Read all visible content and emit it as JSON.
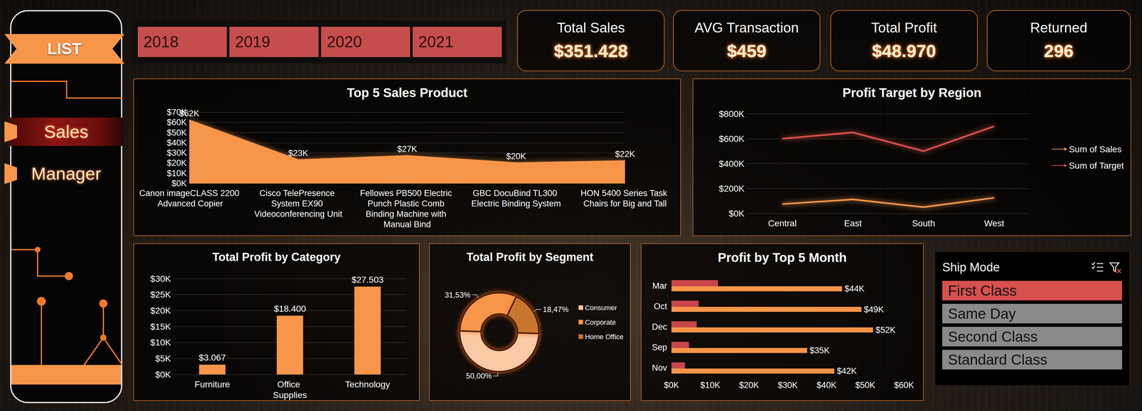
{
  "sidebar": {
    "banner": "LIST",
    "menu": [
      "Sales",
      "Manager"
    ]
  },
  "years": [
    "2018",
    "2019",
    "2020",
    "2021"
  ],
  "kpis": [
    {
      "label": "Total Sales",
      "value": "$351.428"
    },
    {
      "label": "AVG Transaction",
      "value": "$459"
    },
    {
      "label": "Total Profit",
      "value": "$48.970"
    },
    {
      "label": "Returned",
      "value": "296"
    }
  ],
  "ship_mode": {
    "title": "Ship Mode",
    "options": [
      "First Class",
      "Same Day",
      "Second Class",
      "Standard Class"
    ],
    "selected": "First Class"
  },
  "chart_data": [
    {
      "type": "area",
      "title": "Top 5 Sales Product",
      "categories": [
        "Canon imageCLASS 2200 Advanced Copier",
        "Cisco TelePresence System EX90 Videoconferencing Unit",
        "Fellowes PB500 Electric Punch Plastic Comb Binding Machine with Manual Bind",
        "GBC DocuBind TL300 Electric Binding System",
        "HON 5400 Series Task Chairs for Big and Tall"
      ],
      "values": [
        62000,
        23000,
        27000,
        20000,
        22000
      ],
      "value_labels": [
        "$62K",
        "$23K",
        "$27K",
        "$20K",
        "$22K"
      ],
      "color": "#f7964a",
      "ylim": [
        0,
        70000
      ],
      "yticks": [
        {
          "value": 0,
          "label": "$0K"
        },
        {
          "value": 10000,
          "label": "$10K"
        },
        {
          "value": 20000,
          "label": "$20K"
        },
        {
          "value": 30000,
          "label": "$30K"
        },
        {
          "value": 40000,
          "label": "$40K"
        },
        {
          "value": 50000,
          "label": "$50K"
        },
        {
          "value": 60000,
          "label": "$60K"
        },
        {
          "value": 70000,
          "label": "$70K"
        }
      ],
      "grid": true,
      "data_labels": true
    },
    {
      "type": "line",
      "title": "Profit Target by Region",
      "categories": [
        "Central",
        "East",
        "South",
        "West"
      ],
      "series": [
        {
          "name": "Sum of Sales",
          "color": "#f7964a",
          "values": [
            75000,
            112000,
            50000,
            125000
          ]
        },
        {
          "name": "Sum of Target",
          "color": "#e0524a",
          "values": [
            600000,
            650000,
            500000,
            700000
          ]
        }
      ],
      "ylim": [
        0,
        800000
      ],
      "yticks": [
        {
          "value": 0,
          "label": "$0K"
        },
        {
          "value": 200000,
          "label": "$200K"
        },
        {
          "value": 400000,
          "label": "$400K"
        },
        {
          "value": 600000,
          "label": "$600K"
        },
        {
          "value": 800000,
          "label": "$800K"
        }
      ],
      "grid": true,
      "legend": "right"
    },
    {
      "type": "bar",
      "title": "Total Profit by Category",
      "categories": [
        "Furniture",
        "Office Supplies",
        "Technology"
      ],
      "values": [
        3067,
        18400,
        27503
      ],
      "value_labels": [
        "$3.067",
        "$18.400",
        "$27.503"
      ],
      "color": "#f7964a",
      "ylim": [
        0,
        30000
      ],
      "yticks": [
        {
          "value": 0,
          "label": "$0K"
        },
        {
          "value": 5000,
          "label": "$5K"
        },
        {
          "value": 10000,
          "label": "$10K"
        },
        {
          "value": 15000,
          "label": "$15K"
        },
        {
          "value": 20000,
          "label": "$20K"
        },
        {
          "value": 25000,
          "label": "$25K"
        },
        {
          "value": 30000,
          "label": "$30K"
        }
      ],
      "grid": true,
      "data_labels": true
    },
    {
      "type": "donut",
      "title": "Total Profit by Segment",
      "categories": [
        "Consumer",
        "Corporate",
        "Home Office"
      ],
      "values": [
        50.0,
        31.53,
        18.47
      ],
      "value_labels": [
        "50,00%",
        "31,53%",
        "18,47%"
      ],
      "colors": [
        "#fbc9a5",
        "#f7964a",
        "#c8762f"
      ],
      "legend": "right",
      "data_labels": true
    },
    {
      "type": "bar",
      "orientation": "horizontal",
      "title": "Profit by Top 5 Month",
      "categories": [
        "Mar",
        "Oct",
        "Dec",
        "Sep",
        "Nov"
      ],
      "series": [
        {
          "color": "#c9464a",
          "values": [
            12000,
            7000,
            6500,
            4500,
            3500
          ],
          "data_labels": false
        },
        {
          "color": "#f7964a",
          "values": [
            44000,
            49000,
            52000,
            35000,
            42000
          ],
          "value_labels": [
            "$44K",
            "$49K",
            "$52K",
            "$35K",
            "$42K"
          ],
          "data_labels": true
        }
      ],
      "xlim": [
        0,
        60000
      ],
      "xticks": [
        {
          "value": 0,
          "label": "$0K"
        },
        {
          "value": 10000,
          "label": "$10K"
        },
        {
          "value": 20000,
          "label": "$20K"
        },
        {
          "value": 30000,
          "label": "$30K"
        },
        {
          "value": 40000,
          "label": "$40K"
        },
        {
          "value": 50000,
          "label": "$50K"
        },
        {
          "value": 60000,
          "label": "$60K"
        }
      ],
      "grid": false
    }
  ]
}
